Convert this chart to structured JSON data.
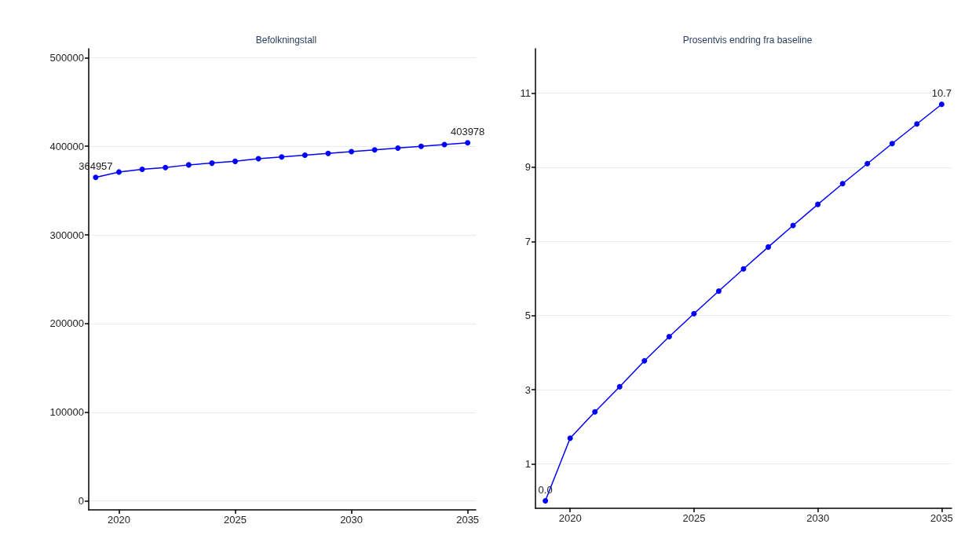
{
  "chart_data": [
    {
      "type": "line",
      "title": "Befolkningstall",
      "x": [
        2019,
        2020,
        2021,
        2022,
        2023,
        2024,
        2025,
        2026,
        2027,
        2028,
        2029,
        2030,
        2031,
        2032,
        2033,
        2034,
        2035
      ],
      "series": [
        {
          "color": "#0000ff",
          "values": [
            364957,
            371000,
            374000,
            376000,
            379000,
            381000,
            383000,
            386000,
            388000,
            390000,
            392000,
            394000,
            396000,
            398000,
            400000,
            402000,
            403978
          ],
          "value_labels": [
            "364957",
            null,
            null,
            null,
            null,
            null,
            null,
            null,
            null,
            null,
            null,
            null,
            null,
            null,
            null,
            null,
            "403978"
          ]
        }
      ],
      "xlim": [
        2018.7,
        2035.35
      ],
      "xticks": [
        2020,
        2025,
        2030,
        2035
      ],
      "ylim": [
        -10000,
        510000
      ],
      "yticks": [
        0,
        100000,
        200000,
        300000,
        400000,
        500000
      ],
      "grid": "y",
      "marker": "circle",
      "line_style": "solid"
    },
    {
      "type": "line",
      "title": "Prosentvis endring fra baseline",
      "x": [
        2019,
        2020,
        2021,
        2022,
        2023,
        2024,
        2025,
        2026,
        2027,
        2028,
        2029,
        2030,
        2031,
        2032,
        2033,
        2034,
        2035
      ],
      "series": [
        {
          "color": "#0000ff",
          "values": [
            0.0,
            1.69,
            2.4,
            3.08,
            3.78,
            4.43,
            5.05,
            5.66,
            6.26,
            6.85,
            7.43,
            8.0,
            8.56,
            9.1,
            9.64,
            10.17,
            10.7
          ],
          "value_labels": [
            "0.0",
            null,
            null,
            null,
            null,
            null,
            null,
            null,
            null,
            null,
            null,
            null,
            null,
            null,
            null,
            null,
            "10.7"
          ]
        }
      ],
      "xlim": [
        2018.6,
        2035.4
      ],
      "xticks": [
        2020,
        2025,
        2030,
        2035
      ],
      "ylim": [
        -0.2,
        12.2
      ],
      "yticks": [
        1,
        3,
        5,
        7,
        9,
        11
      ],
      "grid": "y",
      "marker": "circle",
      "line_style": "solid"
    }
  ]
}
